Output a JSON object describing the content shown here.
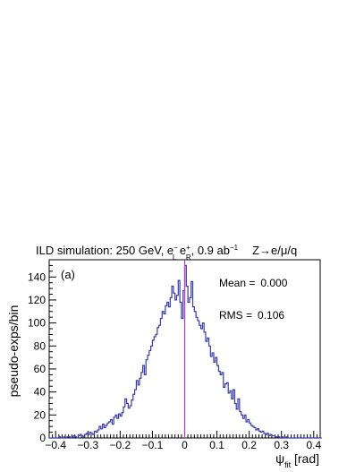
{
  "chart_data": {
    "type": "histogram",
    "title": {
      "prefix": "ILD simulation: 250 GeV, e",
      "beam1_sup": "−",
      "beam1_sub": "L",
      "beam2": " e",
      "beam2_sup": "+",
      "beam2_sub": "R",
      "lumi": ", 0.9 ab",
      "lumi_sup": "−1",
      "channel": "Z→e/μ/q"
    },
    "panel_label": "(a)",
    "ylabel": "pseudo-exps/bin",
    "xlabel_symbol": "ψ",
    "xlabel_sub": "fit",
    "xlabel_unit": " [rad]",
    "xlim": [
      -0.42,
      0.42
    ],
    "ylim": [
      0,
      155
    ],
    "x_ticks": [
      "−0.4",
      "−0.3",
      "−0.2",
      "−0.1",
      "0",
      "0.1",
      "0.2",
      "0.3",
      "0.4"
    ],
    "x_tick_values": [
      -0.4,
      -0.3,
      -0.2,
      -0.1,
      0,
      0.1,
      0.2,
      0.3,
      0.4
    ],
    "y_ticks": [
      "0",
      "20",
      "40",
      "60",
      "80",
      "100",
      "120",
      "140"
    ],
    "y_tick_values": [
      0,
      20,
      40,
      60,
      80,
      100,
      120,
      140
    ],
    "stats": [
      {
        "label": "Mean =",
        "value": "0.000"
      },
      {
        "label": "RMS =",
        "value": "0.106"
      }
    ],
    "vline_x": 0.0,
    "series": [
      {
        "bin_start": -0.42,
        "bin_width": 0.005,
        "counts": [
          0,
          0,
          0,
          0,
          0,
          0,
          1,
          0,
          0,
          1,
          0,
          1,
          1,
          0,
          1,
          2,
          1,
          0,
          2,
          3,
          2,
          1,
          3,
          4,
          3,
          5,
          4,
          3,
          6,
          5,
          7,
          10,
          8,
          12,
          9,
          11,
          13,
          14,
          16,
          12,
          18,
          20,
          17,
          21,
          19,
          22,
          27,
          34,
          30,
          26,
          28,
          33,
          38,
          42,
          50,
          46,
          52,
          57,
          63,
          55,
          68,
          72,
          76,
          80,
          85,
          88,
          90,
          96,
          98,
          104,
          110,
          108,
          115,
          118,
          114,
          122,
          132,
          126,
          120,
          124,
          137,
          118,
          104,
          128,
          150,
          132,
          118,
          122,
          136,
          114,
          110,
          105,
          102,
          98,
          95,
          100,
          92,
          84,
          87,
          80,
          71,
          74,
          66,
          70,
          63,
          58,
          55,
          57,
          44,
          47,
          48,
          39,
          41,
          34,
          42,
          30,
          25,
          34,
          23,
          20,
          17,
          20,
          14,
          16,
          13,
          11,
          10,
          9,
          7,
          8,
          6,
          5,
          6,
          4,
          3,
          4,
          2,
          3,
          2,
          2,
          1,
          1,
          1,
          0,
          1,
          0,
          0,
          1,
          0,
          0,
          0,
          0,
          0,
          0,
          0,
          0,
          0,
          0,
          0,
          0,
          0,
          0,
          0,
          0,
          0,
          0,
          0,
          0,
          0
        ],
        "color": "#3a3aa8"
      }
    ],
    "colors": {
      "histogram": "#3a3aa8",
      "vline": "#cc33cc",
      "axis": "#000000"
    }
  }
}
